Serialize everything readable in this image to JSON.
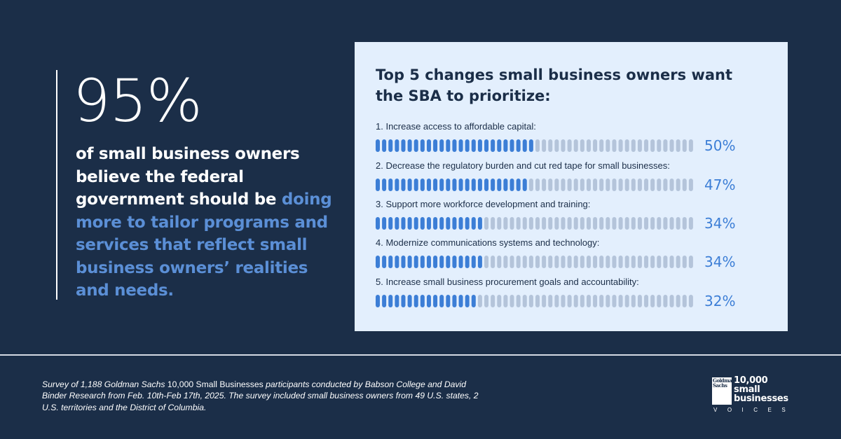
{
  "headline": {
    "stat": "95%",
    "text_white": "of small business owners believe the federal government should be",
    "text_highlight": "doing more to tailor programs and services that reflect small business owners’ realities and needs."
  },
  "colors": {
    "background": "#1b2e48",
    "card": "#e3effd",
    "accent": "#3c7ed6",
    "highlight_text": "#5b8fd6",
    "segment_empty": "#b4c4da"
  },
  "chart_data": {
    "type": "bar",
    "orientation": "horizontal",
    "style": "segmented (50 segments, each = 2%)",
    "title": "Top 5 changes small business owners want the SBA to prioritize:",
    "categories": [
      "1.  Increase access to affordable capital:",
      "2. Decrease the regulatory burden and cut red tape for small businesses:",
      "3. Support more workforce development and training:",
      "4. Modernize communications systems and technology:",
      "5. Increase small business procurement goals and accountability:"
    ],
    "values": [
      50,
      47,
      34,
      34,
      32
    ],
    "value_labels": [
      "50%",
      "47%",
      "34%",
      "34%",
      "32%"
    ],
    "xlim": [
      0,
      100
    ],
    "unit": "%"
  },
  "footer": {
    "footnote_part1": "Survey of 1,188 Goldman Sachs ",
    "footnote_part2": "10,000 Small Businesses ",
    "footnote_part3": "participants conducted by Babson College and David Binder Research from Feb. 10th-Feb 17th, 2025. The survey included small business owners from 49 U.S. states, 2 U.S. territories and the District of Columbia.",
    "logo": {
      "box_text": "Goldman\nSachs",
      "wordmark": "10,000\nsmall\nbusinesses",
      "subtitle": "VOICES"
    }
  }
}
